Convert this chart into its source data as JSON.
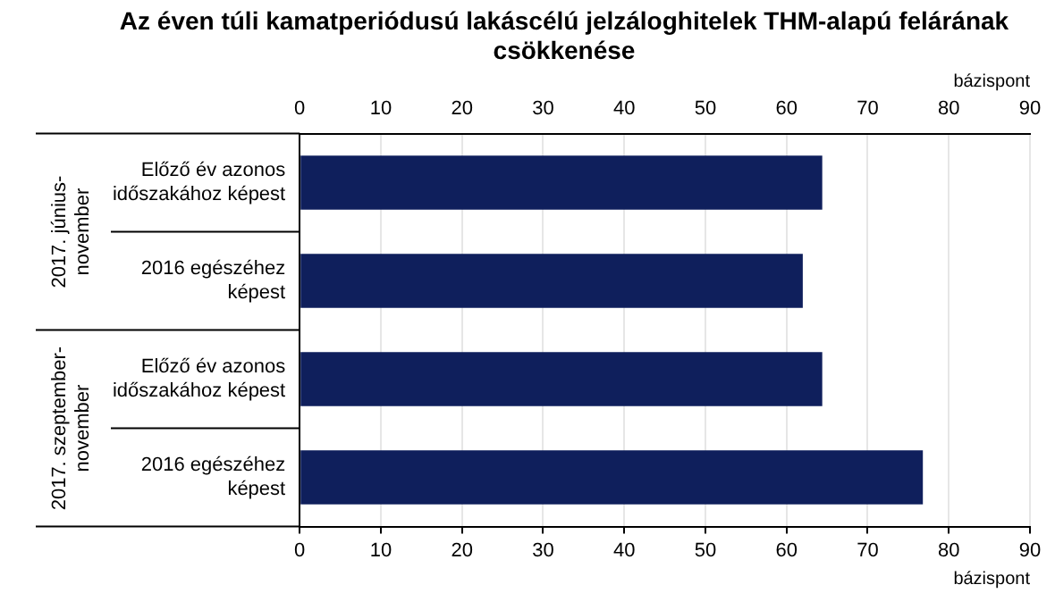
{
  "chart_data": {
    "type": "bar",
    "orientation": "horizontal",
    "title": "Az éven túli kamatperiódusú lakáscélú jelzáloghitelek THM-alapú felárának csökkenése",
    "categories": [
      "Előző év azonos időszakához képest",
      "2016 egészéhez képest",
      "Előző év azonos időszakához képest",
      "2016 egészéhez képest"
    ],
    "values": [
      64.4,
      62,
      64.4,
      76.8
    ],
    "color": "#0f1f5c",
    "xlim": [
      0,
      90
    ],
    "xticks": [
      0,
      10,
      20,
      30,
      40,
      50,
      60,
      70,
      80,
      90
    ],
    "x2lim": [
      0,
      90
    ],
    "x2ticks": [
      0,
      10,
      20,
      30,
      40,
      50,
      60,
      70,
      80,
      90
    ],
    "xlabel": "bázispont",
    "x2label": "bázispont",
    "annotations": [
      "2017. június-november",
      "2017. szeptember-november"
    ],
    "grid": "x",
    "legend": false
  }
}
